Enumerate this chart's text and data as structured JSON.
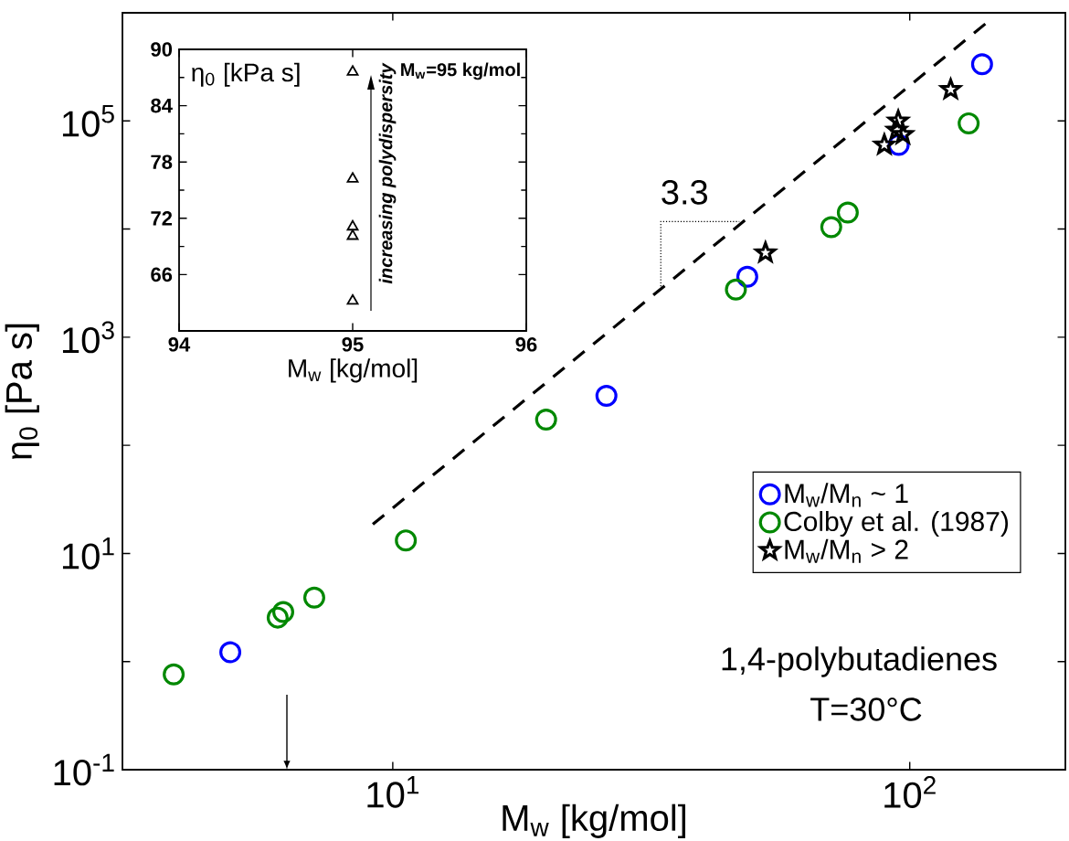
{
  "chart_data": [
    {
      "type": "scatter",
      "xlabel": "M$_{w}$ [kg/mol]",
      "ylabel": "η$_{0}$ [Pa s]",
      "log": "xy",
      "xlim": [
        3,
        200
      ],
      "ylim": [
        0.1,
        1000000
      ],
      "xticks": [
        {
          "value": 10,
          "label": "10$^{1}$"
        },
        {
          "value": 100,
          "label": "10$^{2}$"
        }
      ],
      "yticks": [
        {
          "value": 0.1,
          "label": "10$^{-1}$"
        },
        {
          "value": 1,
          "label": null
        },
        {
          "value": 10,
          "label": "10$^{1}$"
        },
        {
          "value": 100,
          "label": null
        },
        {
          "value": 1000,
          "label": "10$^{3}$"
        },
        {
          "value": 10000,
          "label": null
        },
        {
          "value": 100000,
          "label": "10$^{5}$"
        },
        {
          "value": 1000000,
          "label": null
        }
      ],
      "legend": "right",
      "annotations": [
        {
          "text": "3.3",
          "x": 33,
          "y": 2780
        },
        "1,4-polybutadienes",
        "T=30°C"
      ],
      "series": [
        {
          "name": "M$_{w}$/M$_{n}$ ~ 1",
          "color": "#0000ff",
          "marker": "circle",
          "x": [
            4.85,
            25.9,
            48.5,
            95.2,
            138
          ],
          "values": [
            1.22,
            287,
            3620,
            60000,
            335000
          ]
        },
        {
          "name": "Colby et al. (1987)",
          "color": "#008800",
          "marker": "circle",
          "x": [
            3.77,
            5.99,
            6.14,
            7.05,
            10.6,
            19.8,
            46.1,
            70.5,
            75.9,
            130
          ],
          "values": [
            0.76,
            2.55,
            2.87,
            3.9,
            13.2,
            173,
            2760,
            10400,
            14200,
            95000
          ]
        },
        {
          "name": "M$_{w}$/M$_{n}$ > 2",
          "color": "#000000",
          "marker": "star",
          "x": [
            52.6,
            89.3,
            94.4,
            95,
            97,
            120
          ],
          "values": [
            6030,
            60000,
            82000,
            100000,
            75000,
            195000
          ]
        },
        {
          "type": "line",
          "color": "#000000",
          "marker": "none",
          "line_style": "dashed",
          "x": [
            9.15,
            140
          ],
          "values": [
            18.6,
            790000
          ]
        }
      ]
    },
    {
      "type": "scatter",
      "xlabel": "M$_{w}$ [kg/mol]",
      "ylabel": "η$_{0}$ [kPa s]",
      "xlim": [
        94,
        96
      ],
      "ylim": [
        60,
        90
      ],
      "xticks": [
        94,
        95,
        96
      ],
      "yticks": [
        66,
        72,
        78,
        84,
        90
      ],
      "annotations": [
        "M$_{w}$=95 kg/mol",
        "increasing polydispersity"
      ],
      "series": [
        {
          "color": "#000000",
          "marker": "triangle",
          "x": [
            95,
            95,
            95,
            95,
            95
          ],
          "values": [
            87.6,
            76.2,
            71.1,
            70.1,
            63.2
          ]
        }
      ]
    }
  ]
}
